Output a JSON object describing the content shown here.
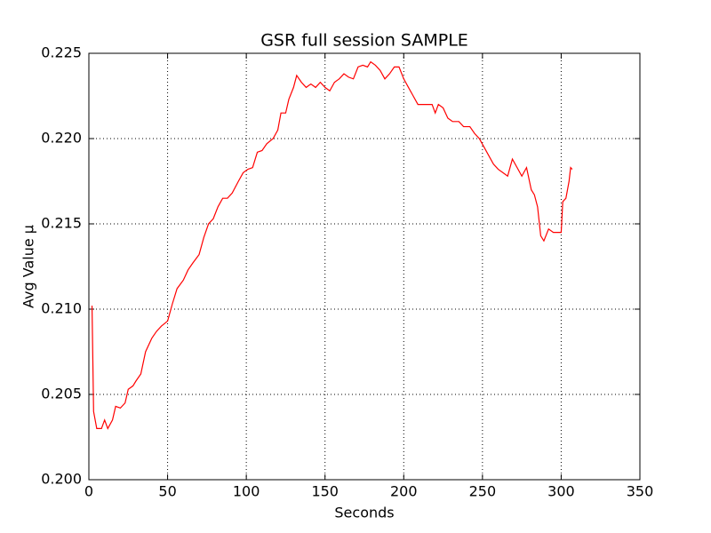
{
  "chart_data": {
    "type": "line",
    "title": "GSR full session SAMPLE",
    "x_label": "Seconds",
    "y_label": "Avg Value µ",
    "x": [
      2,
      3,
      5,
      8,
      10,
      12,
      15,
      17,
      20,
      23,
      25,
      28,
      30,
      33,
      36,
      40,
      43,
      46,
      50,
      53,
      56,
      60,
      63,
      66,
      70,
      73,
      76,
      79,
      82,
      85,
      88,
      91,
      95,
      98,
      101,
      104,
      107,
      110,
      113,
      117,
      120,
      122,
      125,
      127,
      130,
      132,
      135,
      138,
      141,
      144,
      147,
      150,
      153,
      156,
      159,
      162,
      165,
      168,
      171,
      174,
      177,
      179,
      182,
      185,
      188,
      191,
      194,
      197,
      200,
      203,
      206,
      209,
      212,
      215,
      218,
      220,
      222,
      225,
      228,
      231,
      235,
      238,
      242,
      245,
      248,
      251,
      254,
      257,
      260,
      263,
      266,
      269,
      272,
      275,
      278,
      281,
      283,
      285,
      287,
      289,
      292,
      295,
      298,
      300,
      301,
      303,
      305,
      306,
      307
    ],
    "series": [
      {
        "color": "#ff0000",
        "values": [
          0.2102,
          0.204,
          0.203,
          0.203,
          0.2035,
          0.203,
          0.2035,
          0.2043,
          0.2042,
          0.2045,
          0.2053,
          0.2055,
          0.2058,
          0.2062,
          0.2075,
          0.2083,
          0.2087,
          0.209,
          0.2093,
          0.2103,
          0.2112,
          0.2117,
          0.2123,
          0.2127,
          0.2132,
          0.2142,
          0.215,
          0.2153,
          0.216,
          0.2165,
          0.2165,
          0.2168,
          0.2175,
          0.218,
          0.2182,
          0.2183,
          0.2192,
          0.2193,
          0.2197,
          0.22,
          0.2205,
          0.2215,
          0.2215,
          0.2223,
          0.223,
          0.2237,
          0.2233,
          0.223,
          0.2232,
          0.223,
          0.2233,
          0.223,
          0.2228,
          0.2233,
          0.2235,
          0.2238,
          0.2236,
          0.2235,
          0.2242,
          0.2243,
          0.2242,
          0.2245,
          0.2243,
          0.224,
          0.2235,
          0.2238,
          0.2242,
          0.2242,
          0.2235,
          0.223,
          0.2225,
          0.222,
          0.222,
          0.222,
          0.222,
          0.2215,
          0.222,
          0.2218,
          0.2212,
          0.221,
          0.221,
          0.2207,
          0.2207,
          0.2203,
          0.22,
          0.2195,
          0.219,
          0.2185,
          0.2182,
          0.218,
          0.2178,
          0.2188,
          0.2183,
          0.2178,
          0.2183,
          0.217,
          0.2167,
          0.216,
          0.2143,
          0.214,
          0.2147,
          0.2145,
          0.2145,
          0.2145,
          0.2163,
          0.2165,
          0.2175,
          0.2183,
          0.2182
        ]
      }
    ],
    "xlim": [
      0,
      350
    ],
    "xticks": [
      0,
      50,
      100,
      150,
      200,
      250,
      300,
      350
    ],
    "ylim": [
      0.2,
      0.225
    ],
    "yticks": [
      {
        "value": 0.2,
        "label": "0.200"
      },
      {
        "value": 0.205,
        "label": "0.205"
      },
      {
        "value": 0.21,
        "label": "0.210"
      },
      {
        "value": 0.215,
        "label": "0.215"
      },
      {
        "value": 0.22,
        "label": "0.220"
      },
      {
        "value": 0.225,
        "label": "0.225"
      }
    ],
    "grid": true
  }
}
